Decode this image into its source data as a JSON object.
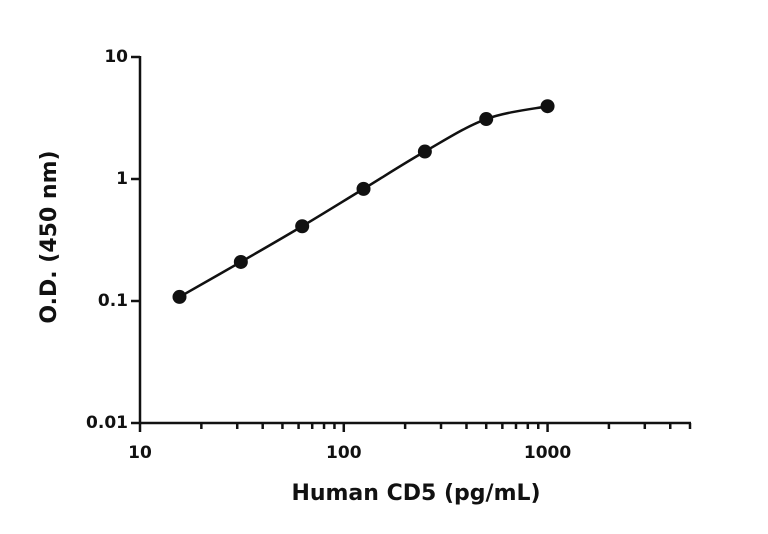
{
  "chart_data": {
    "type": "scatter",
    "x_label": "Human CD5 (pg/mL)",
    "y_label": "O.D. (450 nm)",
    "x": [
      15.625,
      31.25,
      62.5,
      125,
      250,
      500,
      1000
    ],
    "y": [
      0.108,
      0.209,
      0.41,
      0.83,
      1.68,
      3.1,
      3.95
    ],
    "color": "#111111",
    "fit_curve": true,
    "xscale": "log",
    "yscale": "log",
    "xlim": [
      10,
      5000
    ],
    "ylim": [
      0.01,
      10
    ],
    "xticks": [
      10,
      100,
      1000
    ],
    "yticks": [
      0.01,
      0.1,
      1,
      10
    ]
  }
}
